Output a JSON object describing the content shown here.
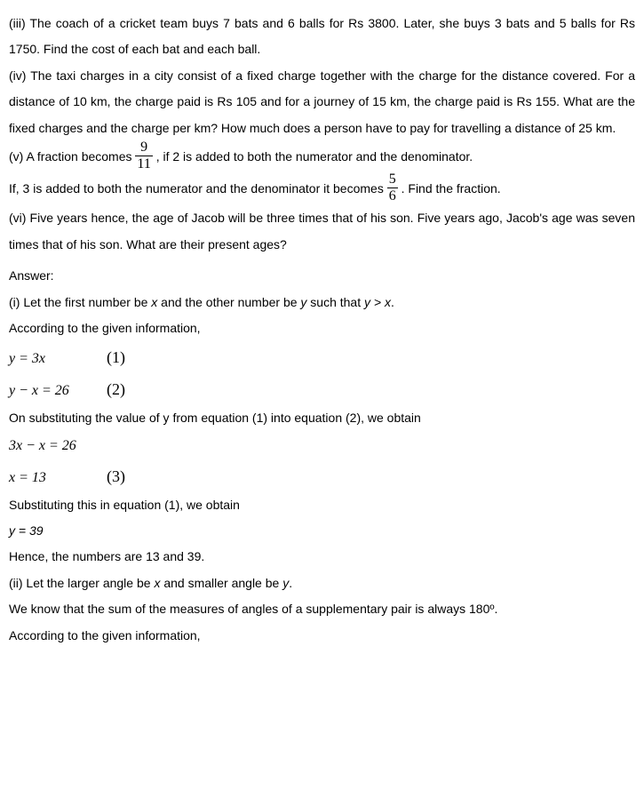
{
  "text_color": "#000000",
  "background_color": "#ffffff",
  "body_fontsize": 14,
  "math_fontsize": 16,
  "problems": {
    "iii": "(iii) The coach of a cricket team buys 7 bats and 6 balls for Rs 3800. Later, she buys 3 bats and 5 balls for Rs 1750. Find the cost of each bat and each ball.",
    "iv": "(iv) The taxi charges in a city consist of a fixed charge together with the charge for the distance covered. For a distance of 10 km, the charge paid is Rs 105 and for a journey of 15 km, the charge paid is Rs 155. What are the fixed charges and the charge per km? How much does a person have to pay for travelling a distance of 25 km.",
    "v_part1a": "(v) A fraction becomes ",
    "v_frac1_num": "9",
    "v_frac1_den": "11",
    "v_part1b": ", if 2 is added to both the numerator and the denominator.",
    "v_part2a": "If, 3 is added to both the numerator and the denominator it becomes ",
    "v_frac2_num": "5",
    "v_frac2_den": "6",
    "v_part2b": ". Find the fraction.",
    "vi": "(vi) Five years hence, the age of Jacob will be three times that of his son. Five years ago, Jacob's age was seven times that of his son. What are their present ages?"
  },
  "answer": {
    "label": "Answer:",
    "i_intro_a": " (i) Let the first number be ",
    "i_intro_x": "x",
    "i_intro_b": " and the other number be ",
    "i_intro_y": "y",
    "i_intro_c": " such that ",
    "i_intro_rel": "y > x",
    "i_intro_d": ".",
    "according": "According to the given information,",
    "eq1_lhs": "y = 3x",
    "eq1_num": "(1)",
    "eq2_lhs": "y − x = 26",
    "eq2_num": "(2)",
    "substitute_text": "On substituting the value of y from equation (1) into equation (2), we obtain",
    "eq3a": "3x − x = 26",
    "eq3b_lhs": "x = 13",
    "eq3b_num": "(3)",
    "sub_in_1": "Substituting this in equation (1), we obtain",
    "y_val": "y = 39",
    "hence": "Hence, the numbers are 13 and 39.",
    "ii_intro_a": "(ii) Let the larger angle be ",
    "ii_intro_x": "x",
    "ii_intro_b": " and smaller angle be ",
    "ii_intro_y": "y",
    "ii_intro_c": ".",
    "supp_text": "We know that the sum of the measures of angles of a supplementary pair is always 180º.",
    "according2": "According to the given information,"
  }
}
